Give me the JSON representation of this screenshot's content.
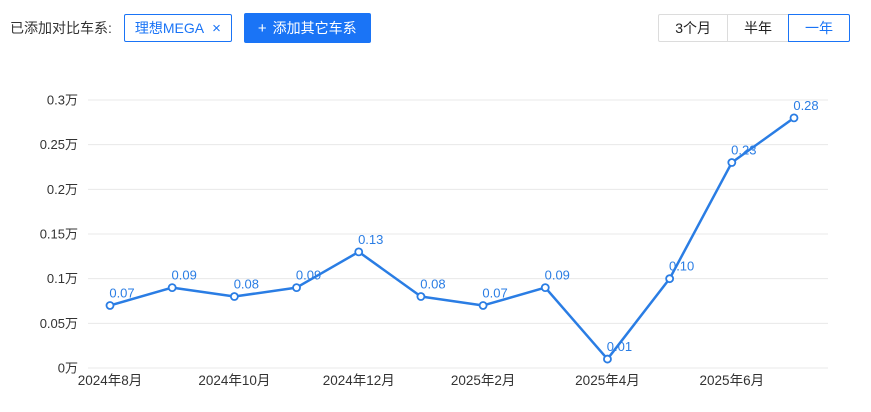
{
  "toolbar": {
    "added_label": "已添加对比车系:",
    "series_tag": {
      "label": "理想MEGA",
      "remove_icon": "×"
    },
    "add_button": {
      "plus_icon": "+",
      "label": "添加其它车系"
    },
    "range_buttons": [
      {
        "label": "3个月",
        "active": false
      },
      {
        "label": "半年",
        "active": false
      },
      {
        "label": "一年",
        "active": true
      }
    ]
  },
  "colors": {
    "accent_blue": "#1a74f6",
    "line_blue": "#2a7de4",
    "grid_line": "#e8e8e8",
    "axis_text": "#333333"
  },
  "chart_data": {
    "type": "line",
    "series": [
      {
        "name": "理想MEGA",
        "values": [
          0.07,
          0.09,
          0.08,
          0.09,
          0.13,
          0.08,
          0.07,
          0.09,
          0.01,
          0.1,
          0.23,
          0.28
        ]
      }
    ],
    "point_labels": [
      "0.07",
      "0.09",
      "0.08",
      "0.09",
      "0.13",
      "0.08",
      "0.07",
      "0.09",
      "0.01",
      "0.10",
      "0.23",
      "0.28"
    ],
    "x_tick_labels": [
      "2024年8月",
      "2024年10月",
      "2024年12月",
      "2025年2月",
      "2025年4月",
      "2025年6月"
    ],
    "x_tick_point_indices": [
      0,
      2,
      4,
      6,
      8,
      10
    ],
    "y_tick_labels": [
      "0万",
      "0.05万",
      "0.1万",
      "0.15万",
      "0.2万",
      "0.25万",
      "0.3万"
    ],
    "ylim": [
      0,
      0.3
    ],
    "grid": true,
    "legend": "none",
    "marker": "open-circle"
  }
}
